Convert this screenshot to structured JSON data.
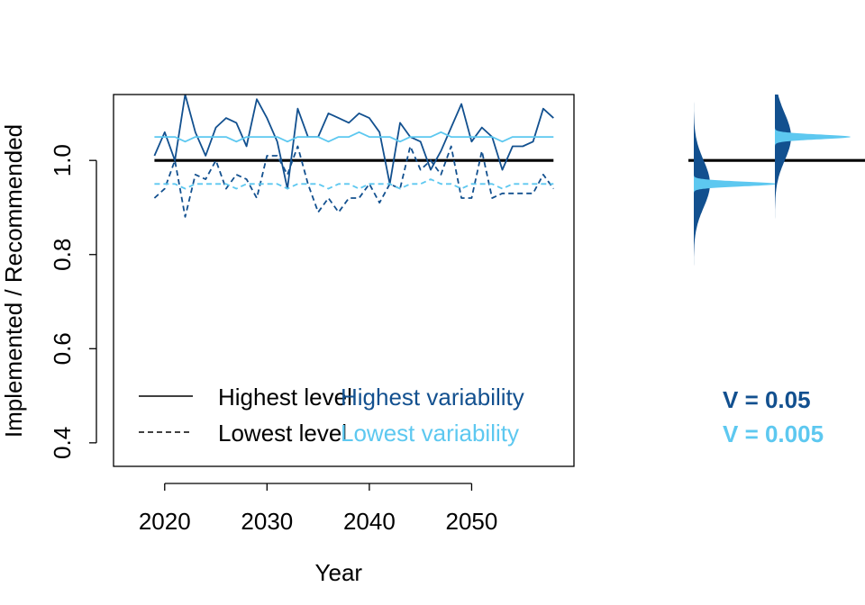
{
  "chart_data": {
    "type": "line",
    "xlabel": "Year",
    "ylabel": "Implemented / Recommended",
    "x_ticks": [
      2020,
      2030,
      2040,
      2050
    ],
    "y_ticks": [
      "0.4",
      "0.6",
      "0.8",
      "1.0"
    ],
    "xlim": [
      2015,
      2060
    ],
    "ylim": [
      0.35,
      1.14
    ],
    "reference_line": 1.0,
    "colors": {
      "high_variability": "#12508f",
      "low_variability": "#5dc8f0",
      "reference": "#000000"
    },
    "x": [
      2019,
      2020,
      2021,
      2022,
      2023,
      2024,
      2025,
      2026,
      2027,
      2028,
      2029,
      2030,
      2031,
      2032,
      2033,
      2034,
      2035,
      2036,
      2037,
      2038,
      2039,
      2040,
      2041,
      2042,
      2043,
      2044,
      2045,
      2046,
      2047,
      2048,
      2049,
      2050,
      2051,
      2052,
      2053,
      2054,
      2055,
      2056,
      2057,
      2058
    ],
    "series": [
      {
        "name": "Highest level / Highest variability",
        "style": "solid",
        "color": "#12508f",
        "values": [
          1.01,
          1.06,
          1.0,
          1.14,
          1.06,
          1.01,
          1.07,
          1.09,
          1.08,
          1.03,
          1.13,
          1.09,
          1.04,
          0.94,
          1.11,
          1.05,
          1.05,
          1.1,
          1.09,
          1.08,
          1.1,
          1.09,
          1.06,
          0.95,
          1.08,
          1.05,
          1.04,
          0.98,
          1.02,
          1.07,
          1.12,
          1.04,
          1.07,
          1.05,
          0.98,
          1.03,
          1.03,
          1.04,
          1.11,
          1.09
        ]
      },
      {
        "name": "Lowest level / Highest variability",
        "style": "dashed",
        "color": "#12508f",
        "values": [
          0.92,
          0.94,
          1.0,
          0.88,
          0.97,
          0.96,
          1.0,
          0.94,
          0.97,
          0.96,
          0.92,
          1.01,
          1.01,
          0.97,
          1.03,
          0.95,
          0.89,
          0.92,
          0.89,
          0.92,
          0.92,
          0.95,
          0.91,
          0.95,
          0.94,
          1.03,
          0.98,
          1.0,
          0.97,
          1.03,
          0.92,
          0.92,
          1.02,
          0.92,
          0.93,
          0.93,
          0.93,
          0.93,
          0.97,
          0.94
        ]
      },
      {
        "name": "Highest level / Lowest variability",
        "style": "solid",
        "color": "#5dc8f0",
        "values": [
          1.05,
          1.05,
          1.05,
          1.04,
          1.05,
          1.05,
          1.05,
          1.05,
          1.04,
          1.05,
          1.05,
          1.05,
          1.05,
          1.04,
          1.05,
          1.05,
          1.05,
          1.04,
          1.05,
          1.05,
          1.06,
          1.05,
          1.05,
          1.05,
          1.04,
          1.05,
          1.05,
          1.05,
          1.06,
          1.05,
          1.05,
          1.05,
          1.05,
          1.05,
          1.04,
          1.05,
          1.05,
          1.05,
          1.05,
          1.05
        ]
      },
      {
        "name": "Lowest level / Lowest variability",
        "style": "dashed",
        "color": "#5dc8f0",
        "values": [
          0.95,
          0.95,
          0.95,
          0.94,
          0.95,
          0.95,
          0.95,
          0.95,
          0.94,
          0.95,
          0.95,
          0.95,
          0.95,
          0.94,
          0.95,
          0.95,
          0.95,
          0.94,
          0.95,
          0.95,
          0.94,
          0.95,
          0.95,
          0.95,
          0.94,
          0.95,
          0.95,
          0.96,
          0.95,
          0.95,
          0.94,
          0.95,
          0.95,
          0.95,
          0.94,
          0.95,
          0.95,
          0.95,
          0.95,
          0.95
        ]
      }
    ],
    "legend": {
      "placement": "bottom-left",
      "line_styles": [
        {
          "label": "Highest level",
          "style": "solid"
        },
        {
          "label": "Lowest level",
          "style": "dashed"
        }
      ],
      "variability": [
        {
          "label": "Highest variability",
          "color": "#12508f"
        },
        {
          "label": "Lowest variability",
          "color": "#5dc8f0"
        }
      ]
    },
    "distributions": [
      {
        "series": "Lowest level",
        "high_variability": {
          "center": 0.95,
          "sd": 0.05,
          "color": "#12508f"
        },
        "low_variability": {
          "center": 0.95,
          "sd": 0.005,
          "color": "#5dc8f0"
        }
      },
      {
        "series": "Highest level",
        "high_variability": {
          "center": 1.05,
          "sd": 0.05,
          "color": "#12508f"
        },
        "low_variability": {
          "center": 1.05,
          "sd": 0.005,
          "color": "#5dc8f0"
        }
      }
    ],
    "v_labels": [
      {
        "text": "V = 0.05",
        "color": "#12508f"
      },
      {
        "text": "V = 0.005",
        "color": "#5dc8f0"
      }
    ]
  }
}
